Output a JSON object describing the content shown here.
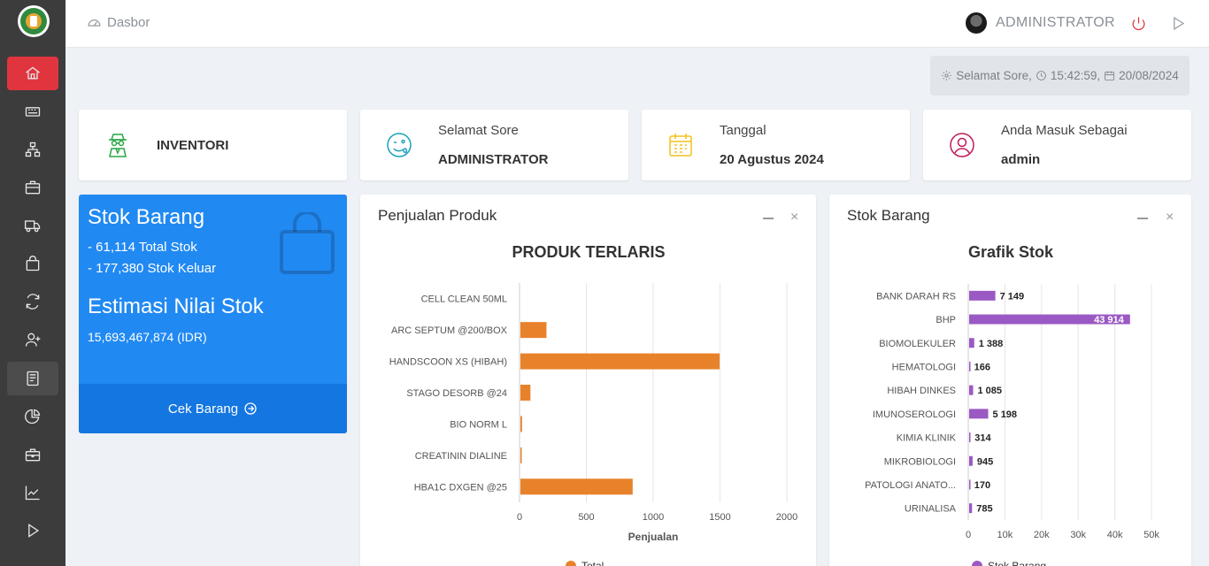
{
  "sidebar": {
    "icons": [
      "logo-icon",
      "home-icon",
      "keyboard-icon",
      "sitemap-icon",
      "briefcase-icon",
      "truck-icon",
      "bag-icon",
      "refresh-icon",
      "user-plus-icon",
      "book-icon",
      "pie-chart-icon",
      "toolbox-icon",
      "line-chart-icon",
      "play-icon"
    ]
  },
  "topbar": {
    "breadcrumb": "Dasbor",
    "username": "ADMINISTRATOR"
  },
  "greeting": {
    "text": "Selamat Sore,",
    "time": "15:42:59,",
    "date": "20/08/2024"
  },
  "cards": {
    "inventori": "INVENTORI",
    "greet_label": "Selamat Sore",
    "greet_value": "ADMINISTRATOR",
    "date_label": "Tanggal",
    "date_value": "20 Agustus 2024",
    "login_label": "Anda Masuk Sebagai",
    "login_value": "admin"
  },
  "stock_card": {
    "title": "Stok Barang",
    "total_stock": "- 61,114 Total Stok",
    "out_stock": "- 177,380 Stok Keluar",
    "estimate_title": "Estimasi Nilai Stok",
    "estimate_value": "15,693,467,874 (IDR)",
    "link": "Cek Barang"
  },
  "panels": {
    "sales_title": "Penjualan Produk",
    "stock_title": "Stok Barang",
    "close_symbol": "×"
  },
  "chart_data": [
    {
      "type": "bar",
      "orientation": "horizontal",
      "title": "PRODUK TERLARIS",
      "xlabel": "Penjualan",
      "ylabel": "",
      "xlim": [
        0,
        2000
      ],
      "x_ticks": [
        "0",
        "500",
        "1000",
        "1500",
        "2000"
      ],
      "categories": [
        "CELL CLEAN 50ML",
        "ARC SEPTUM @200/BOX",
        "HANDSCOON XS (HIBAH)",
        "STAGO DESORB @24",
        "BIO NORM L",
        "CREATININ DIALINE",
        "HBA1C DXGEN @25"
      ],
      "series": [
        {
          "name": "Total",
          "color": "#e8822a",
          "values": [
            0,
            195,
            1490,
            75,
            12,
            5,
            840
          ]
        }
      ],
      "grid": true,
      "legend": "bottom"
    },
    {
      "type": "bar",
      "orientation": "horizontal",
      "title": "Grafik Stok",
      "xlabel": "",
      "ylabel": "",
      "xlim": [
        0,
        50000
      ],
      "x_ticks": [
        "0",
        "10k",
        "20k",
        "30k",
        "40k",
        "50k"
      ],
      "categories": [
        "BANK DARAH RS",
        "BHP",
        "BIOMOLEKULER",
        "HEMATOLOGI",
        "HIBAH DINKES",
        "IMUNOSEROLOGI",
        "KIMIA KLINIK",
        "MIKROBIOLOGI",
        "PATOLOGI ANATO...",
        "URINALISA"
      ],
      "series": [
        {
          "name": "Stok Barang",
          "color": "#9b59c4",
          "values": [
            7149,
            43914,
            1388,
            166,
            1085,
            5198,
            314,
            945,
            170,
            785
          ]
        }
      ],
      "value_labels": [
        "7 149",
        "43 914",
        "1 388",
        "166",
        "1 085",
        "5 198",
        "314",
        "945",
        "170",
        "785"
      ],
      "grid": true,
      "legend": "bottom"
    }
  ]
}
